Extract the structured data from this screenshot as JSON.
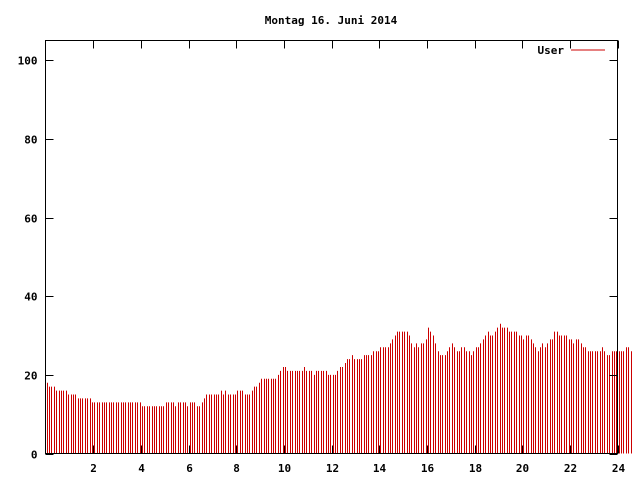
{
  "chart_data": {
    "type": "bar",
    "title": "Montag 16. Juni 2014",
    "xlabel": "",
    "ylabel": "",
    "xlim": [
      0,
      24
    ],
    "ylim": [
      0,
      105
    ],
    "xticks": [
      2,
      4,
      6,
      8,
      10,
      12,
      14,
      16,
      18,
      20,
      22,
      24
    ],
    "yticks": [
      0,
      20,
      40,
      60,
      80,
      100
    ],
    "grid": false,
    "legend_position": "top-right",
    "bar_step_hours": 0.1,
    "series": [
      {
        "name": "User",
        "color": "#cc0000",
        "values": [
          18,
          17,
          17,
          17,
          16,
          16,
          16,
          16,
          16,
          15,
          15,
          15,
          15,
          14,
          14,
          14,
          14,
          14,
          14,
          13,
          13,
          13,
          13,
          13,
          13,
          13,
          13,
          13,
          13,
          13,
          13,
          13,
          13,
          13,
          13,
          13,
          13,
          13,
          13,
          13,
          12,
          12,
          12,
          12,
          12,
          12,
          12,
          12,
          12,
          12,
          13,
          13,
          13,
          13,
          12,
          13,
          13,
          13,
          13,
          12,
          13,
          13,
          13,
          12,
          12,
          13,
          14,
          15,
          15,
          15,
          15,
          15,
          15,
          16,
          15,
          16,
          15,
          15,
          15,
          15,
          16,
          16,
          16,
          15,
          15,
          15,
          16,
          17,
          17,
          18,
          19,
          19,
          19,
          19,
          19,
          19,
          19,
          20,
          21,
          22,
          22,
          21,
          21,
          21,
          21,
          21,
          21,
          21,
          22,
          21,
          21,
          21,
          20,
          21,
          21,
          21,
          21,
          21,
          20,
          20,
          20,
          20,
          21,
          22,
          22,
          23,
          24,
          24,
          25,
          24,
          24,
          24,
          24,
          25,
          25,
          25,
          25,
          26,
          26,
          26,
          27,
          27,
          27,
          27,
          28,
          29,
          30,
          31,
          31,
          31,
          31,
          31,
          30,
          28,
          27,
          28,
          27,
          28,
          28,
          29,
          32,
          31,
          30,
          28,
          26,
          25,
          25,
          25,
          26,
          27,
          28,
          27,
          26,
          26,
          27,
          27,
          26,
          26,
          25,
          26,
          27,
          27,
          28,
          29,
          30,
          31,
          30,
          30,
          31,
          32,
          33,
          32,
          32,
          32,
          31,
          31,
          31,
          31,
          30,
          30,
          29,
          30,
          30,
          29,
          28,
          27,
          26,
          27,
          28,
          27,
          28,
          29,
          29,
          31,
          31,
          30,
          30,
          30,
          30,
          29,
          29,
          28,
          29,
          29,
          28,
          27,
          27,
          26,
          26,
          26,
          26,
          26,
          26,
          27,
          26,
          25,
          25,
          26,
          26,
          26,
          26,
          26,
          26,
          27,
          27,
          26
        ]
      }
    ]
  }
}
